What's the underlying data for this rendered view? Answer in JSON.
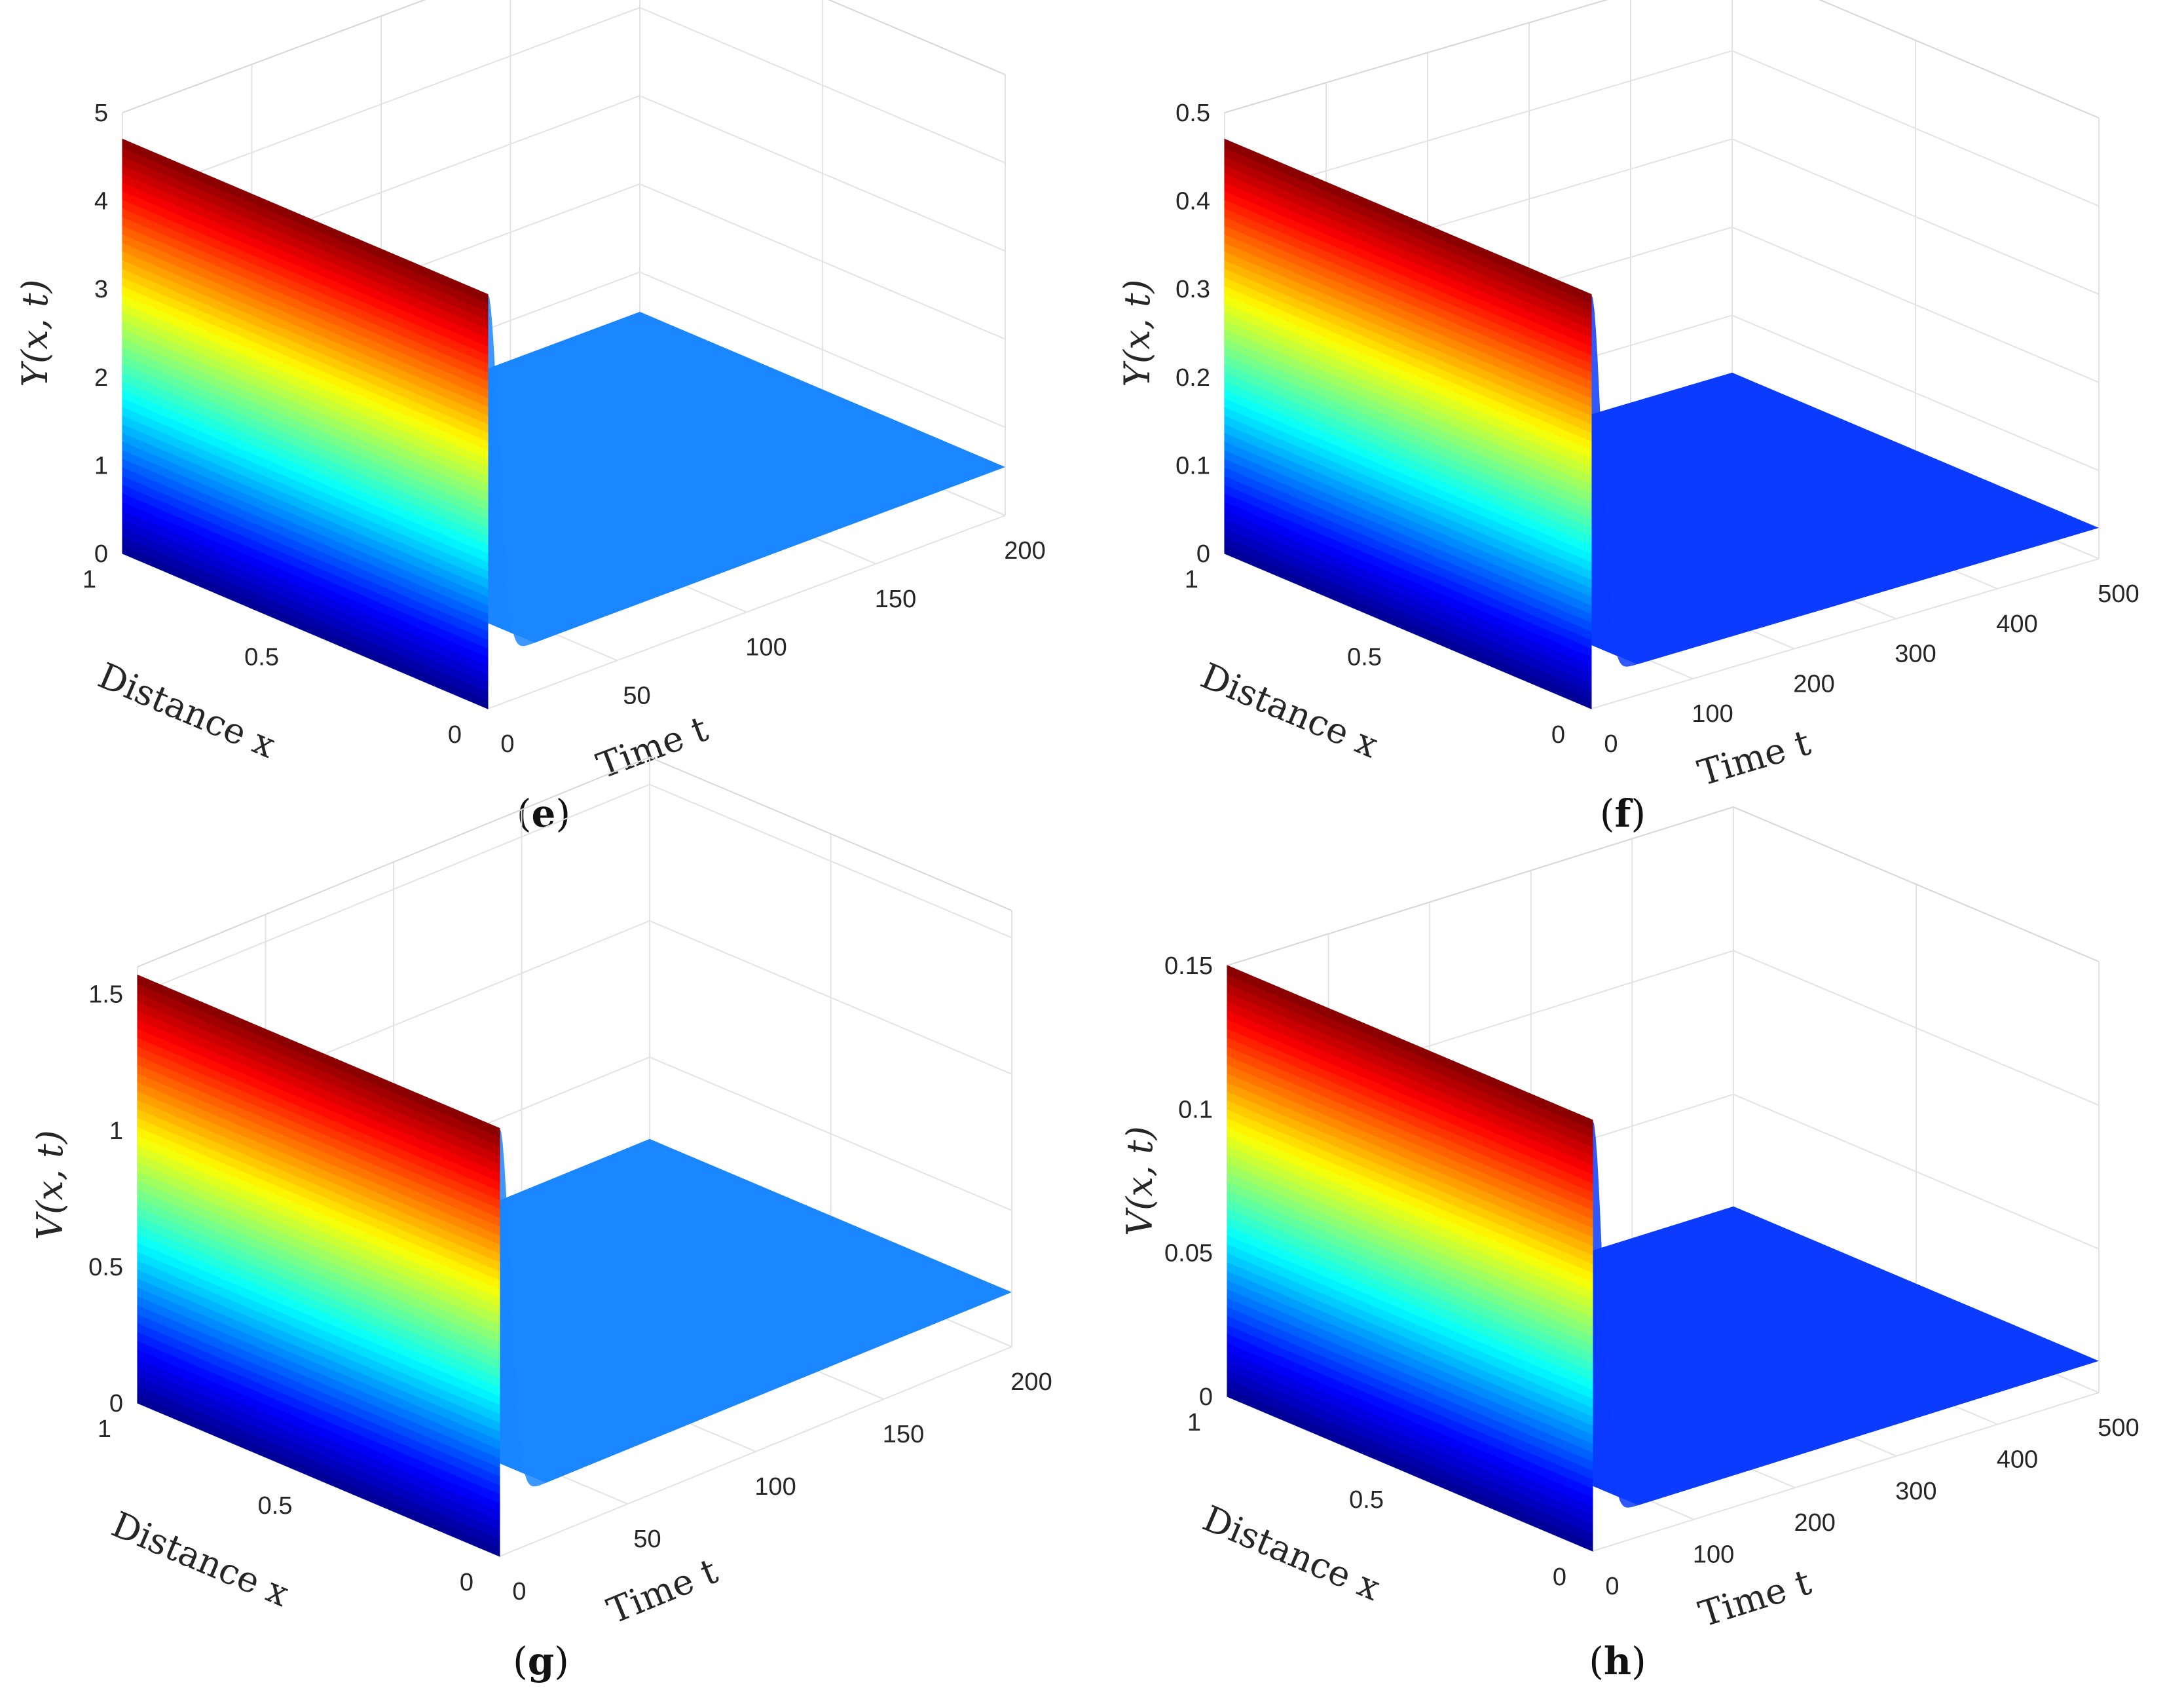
{
  "chart_data": [
    {
      "type": "surface3d",
      "panel_label": "e",
      "zlabel": "Y(x, t)",
      "xlabel": "Distance x",
      "ylabel": "Time t",
      "xlim": [
        0,
        1
      ],
      "tlim": [
        0,
        200
      ],
      "zlim": [
        0,
        5
      ],
      "x_ticks": [
        "0",
        "0.5",
        "1"
      ],
      "t_ticks": [
        "0",
        "50",
        "100",
        "150",
        "200"
      ],
      "z_ticks": [
        "0",
        "1",
        "2",
        "3",
        "4",
        "5"
      ],
      "initial_peak": 4.7,
      "steady_value": 0.55,
      "front_width": 18,
      "colormap": "jet",
      "floor_color": "#1a86ff"
    },
    {
      "type": "surface3d",
      "panel_label": "f",
      "zlabel": "Y(x, t)",
      "xlabel": "Distance x",
      "ylabel": "Time t",
      "xlim": [
        0,
        1
      ],
      "tlim": [
        0,
        500
      ],
      "zlim": [
        0,
        0.5
      ],
      "x_ticks": [
        "0",
        "0.5",
        "1"
      ],
      "t_ticks": [
        "0",
        "100",
        "200",
        "300",
        "400",
        "500"
      ],
      "z_ticks": [
        "0",
        "0.1",
        "0.2",
        "0.3",
        "0.4",
        "0.5"
      ],
      "initial_peak": 0.47,
      "steady_value": 0.035,
      "front_width": 14,
      "colormap": "jet",
      "floor_color": "#0a3bff"
    },
    {
      "type": "surface3d",
      "panel_label": "g",
      "zlabel": "V(x, t)",
      "xlabel": "Distance x",
      "ylabel": "Time t",
      "xlim": [
        0,
        1
      ],
      "tlim": [
        0,
        200
      ],
      "zlim": [
        0,
        1.6
      ],
      "x_ticks": [
        "0",
        "0.5",
        "1"
      ],
      "t_ticks": [
        "0",
        "50",
        "100",
        "150",
        "200"
      ],
      "z_ticks": [
        "0",
        "0.5",
        "1",
        "1.5"
      ],
      "initial_peak": 1.57,
      "steady_value": 0.2,
      "front_width": 18,
      "colormap": "jet",
      "floor_color": "#1a86ff"
    },
    {
      "type": "surface3d",
      "panel_label": "h",
      "zlabel": "V(x, t)",
      "xlabel": "Distance x",
      "ylabel": "Time t",
      "xlim": [
        0,
        1
      ],
      "tlim": [
        0,
        500
      ],
      "zlim": [
        0,
        0.15
      ],
      "x_ticks": [
        "0",
        "0.5",
        "1"
      ],
      "t_ticks": [
        "0",
        "100",
        "200",
        "300",
        "400",
        "500"
      ],
      "z_ticks": [
        "0",
        "0.05",
        "0.1",
        "0.15"
      ],
      "initial_peak": 0.15,
      "steady_value": 0.011,
      "front_width": 14,
      "colormap": "jet",
      "floor_color": "#0a3bff"
    }
  ]
}
